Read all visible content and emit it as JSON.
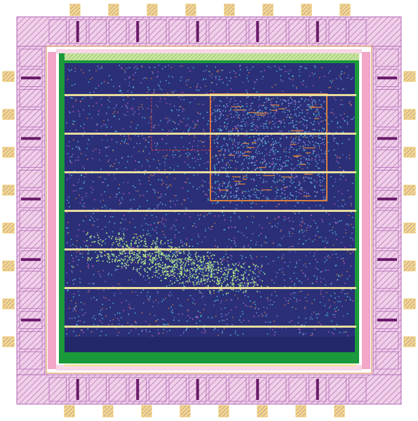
{
  "layout": {
    "pads_per_side": 8,
    "pad_cells_per_side": 16,
    "power_rail_count": 8,
    "colors": {
      "background": "#ffffff",
      "bond_pad": "#e8c46a",
      "pad_ring_hatch": "#b06ab8",
      "pad_ring_fill": "#f0d0e8",
      "pad_strap": "#6a1a6a",
      "seal_ring_pink": "#f2a6c8",
      "core_border_green": "#1a9a3a",
      "core_fill": "#2a2f78",
      "core_fill_dark": "#1e2260",
      "power_rail": "#f2e6a0",
      "top_stripe": "#a8d06a",
      "cell_speckle_cyan": "#5ad0e0",
      "cell_speckle_lime": "#b8ee8a",
      "cell_speckle_magenta": "#d060c0",
      "routing_orange": "#d88040",
      "routing_red": "#e04040"
    }
  }
}
